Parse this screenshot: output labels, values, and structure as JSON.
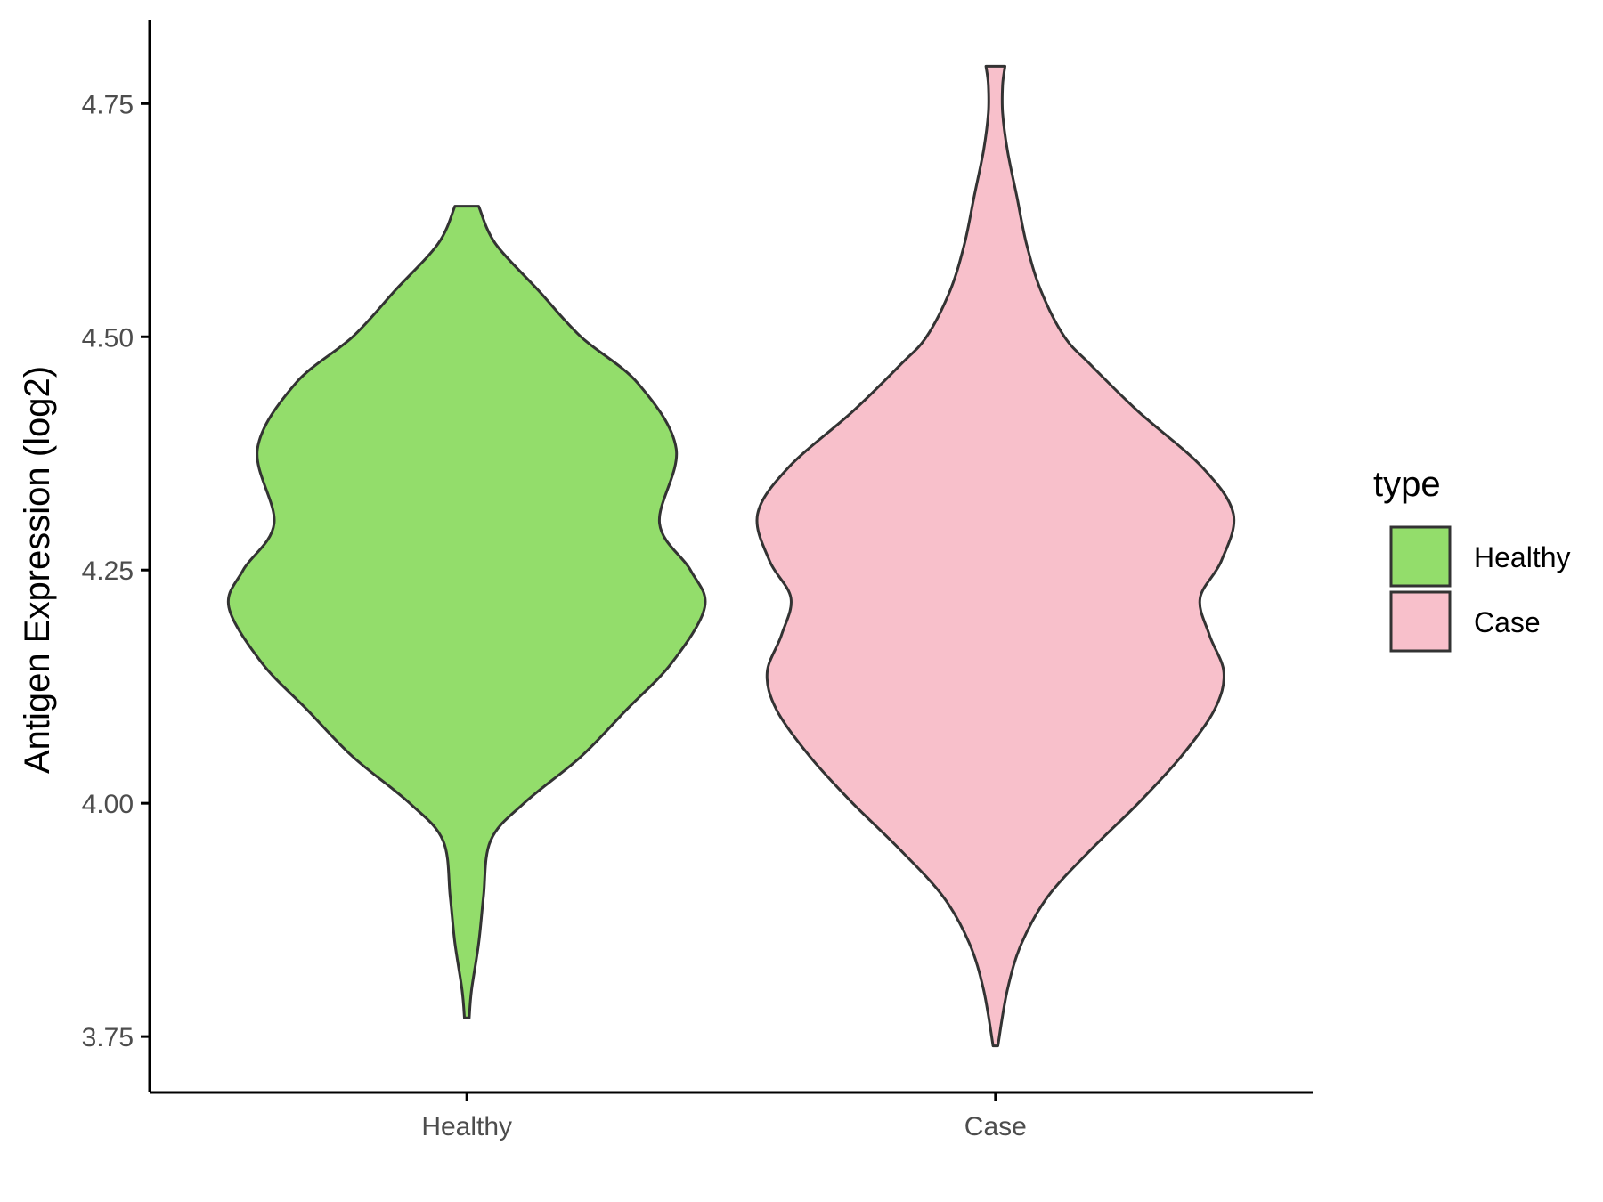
{
  "chart_data": {
    "type": "violin",
    "ylabel": "Antigen Expression (log2)",
    "xlabel": "",
    "ylim": [
      3.69,
      4.84
    ],
    "yticks": [
      "3.75",
      "4.00",
      "4.25",
      "4.50",
      "4.75"
    ],
    "categories": [
      "Healthy",
      "Case"
    ],
    "legend": {
      "title": "type",
      "position": "right",
      "entries": [
        "Healthy",
        "Case"
      ]
    },
    "grid": false,
    "colors": {
      "Healthy": "#93dd6b",
      "Case": "#f8c0cb",
      "outline": "#333333",
      "axis": "#000000"
    },
    "series": [
      {
        "name": "Healthy",
        "min": 3.77,
        "max": 4.64,
        "density_profile": [
          [
            3.77,
            0.01
          ],
          [
            3.8,
            0.02
          ],
          [
            3.85,
            0.05
          ],
          [
            3.9,
            0.07
          ],
          [
            3.96,
            0.1
          ],
          [
            4.0,
            0.24
          ],
          [
            4.05,
            0.48
          ],
          [
            4.1,
            0.67
          ],
          [
            4.15,
            0.86
          ],
          [
            4.21,
            1.0
          ],
          [
            4.25,
            0.94
          ],
          [
            4.3,
            0.81
          ],
          [
            4.38,
            0.88
          ],
          [
            4.45,
            0.72
          ],
          [
            4.5,
            0.48
          ],
          [
            4.55,
            0.3
          ],
          [
            4.6,
            0.12
          ],
          [
            4.64,
            0.05
          ]
        ]
      },
      {
        "name": "Case",
        "min": 3.74,
        "max": 4.79,
        "density_profile": [
          [
            3.74,
            0.01
          ],
          [
            3.8,
            0.05
          ],
          [
            3.85,
            0.11
          ],
          [
            3.9,
            0.22
          ],
          [
            3.95,
            0.4
          ],
          [
            4.0,
            0.6
          ],
          [
            4.05,
            0.78
          ],
          [
            4.1,
            0.92
          ],
          [
            4.14,
            0.96
          ],
          [
            4.18,
            0.9
          ],
          [
            4.22,
            0.86
          ],
          [
            4.26,
            0.95
          ],
          [
            4.31,
            1.0
          ],
          [
            4.36,
            0.87
          ],
          [
            4.42,
            0.6
          ],
          [
            4.47,
            0.4
          ],
          [
            4.5,
            0.29
          ],
          [
            4.55,
            0.19
          ],
          [
            4.6,
            0.13
          ],
          [
            4.65,
            0.09
          ],
          [
            4.7,
            0.05
          ],
          [
            4.74,
            0.03
          ],
          [
            4.77,
            0.03
          ],
          [
            4.79,
            0.04
          ]
        ]
      }
    ]
  }
}
